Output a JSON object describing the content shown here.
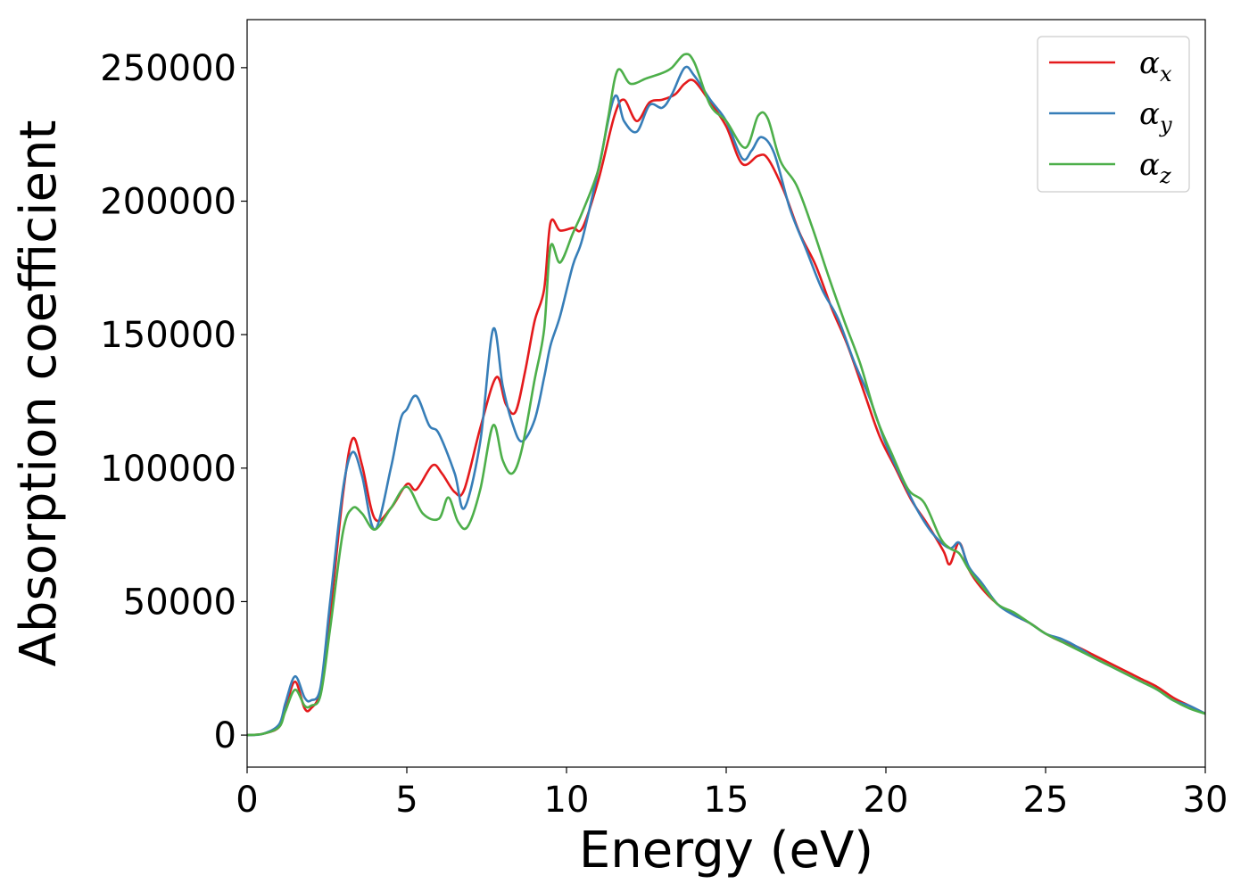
{
  "chart_data": {
    "type": "line",
    "title": "",
    "xlabel": "Energy (eV)",
    "ylabel": "Absorption coefficient",
    "xlim": [
      0,
      30
    ],
    "ylim": [
      -12000,
      268000
    ],
    "xticks": [
      0,
      5,
      10,
      15,
      20,
      25,
      30
    ],
    "yticks": [
      0,
      50000,
      100000,
      150000,
      200000,
      250000
    ],
    "grid": false,
    "legend_position": "top-right",
    "series": [
      {
        "name": "α",
        "subscript": "x",
        "color": "#e41a1c",
        "x": [
          0,
          0.5,
          1.0,
          1.2,
          1.5,
          1.8,
          2.0,
          2.3,
          2.6,
          3.0,
          3.3,
          3.6,
          4.0,
          4.5,
          5.0,
          5.3,
          5.8,
          6.1,
          6.5,
          6.8,
          7.3,
          7.8,
          8.1,
          8.4,
          8.7,
          9.0,
          9.3,
          9.5,
          9.8,
          10.2,
          10.5,
          11.0,
          11.5,
          11.8,
          12.2,
          12.6,
          13.0,
          13.4,
          13.7,
          14.0,
          14.5,
          15.0,
          15.5,
          16.0,
          16.3,
          16.8,
          17.3,
          17.8,
          18.3,
          18.8,
          19.3,
          19.8,
          20.3,
          20.8,
          21.3,
          21.8,
          22.0,
          22.3,
          22.6,
          23.0,
          23.5,
          24.0,
          24.5,
          25.0,
          25.5,
          26.0,
          26.5,
          27.0,
          27.5,
          28.0,
          28.5,
          29.0,
          29.5,
          30.0
        ],
        "y": [
          0,
          500,
          3000,
          10000,
          20000,
          10000,
          10000,
          17000,
          45000,
          90000,
          111000,
          101000,
          81000,
          85000,
          94000,
          92000,
          101000,
          98000,
          91000,
          92000,
          115000,
          134000,
          124000,
          121000,
          136000,
          155000,
          167000,
          192000,
          189000,
          190000,
          190000,
          208000,
          232000,
          238000,
          230000,
          237000,
          238000,
          240000,
          244000,
          245000,
          237000,
          228000,
          214000,
          217000,
          216000,
          204000,
          188000,
          176000,
          160000,
          146000,
          129000,
          112000,
          100000,
          88000,
          79000,
          69000,
          64000,
          72000,
          62000,
          55000,
          49000,
          45000,
          42000,
          38000,
          35000,
          33000,
          30000,
          27000,
          24000,
          21000,
          18000,
          14000,
          11000,
          8000
        ]
      },
      {
        "name": "α",
        "subscript": "y",
        "color": "#377eb8",
        "x": [
          0,
          0.5,
          1.0,
          1.2,
          1.5,
          1.8,
          2.0,
          2.3,
          2.6,
          3.0,
          3.3,
          3.6,
          4.0,
          4.5,
          4.8,
          5.0,
          5.3,
          5.7,
          6.0,
          6.5,
          6.8,
          7.3,
          7.7,
          8.0,
          8.3,
          8.6,
          9.0,
          9.3,
          9.5,
          9.8,
          10.2,
          10.5,
          11.0,
          11.5,
          11.8,
          12.2,
          12.6,
          13.0,
          13.3,
          13.7,
          14.0,
          14.5,
          15.0,
          15.5,
          15.8,
          16.1,
          16.5,
          17.0,
          17.5,
          18.0,
          18.5,
          19.0,
          19.5,
          20.0,
          20.5,
          21.0,
          21.5,
          22.0,
          22.3,
          22.6,
          23.0,
          23.5,
          24.0,
          24.5,
          25.0,
          25.5,
          26.0,
          26.5,
          27.0,
          27.5,
          28.0,
          28.5,
          29.0,
          29.5,
          30.0
        ],
        "y": [
          0,
          500,
          4000,
          12000,
          22000,
          14000,
          13000,
          18000,
          50000,
          92000,
          106000,
          97000,
          77000,
          100000,
          118000,
          122000,
          127000,
          116000,
          113000,
          98000,
          85000,
          110000,
          152000,
          131000,
          117000,
          110000,
          118000,
          134000,
          146000,
          157000,
          176000,
          186000,
          212000,
          239000,
          230000,
          226000,
          236000,
          235000,
          240000,
          250000,
          247000,
          238000,
          230000,
          216000,
          219000,
          224000,
          218000,
          197000,
          182000,
          167000,
          156000,
          140000,
          126000,
          109000,
          96000,
          84000,
          75000,
          70000,
          72000,
          63000,
          57000,
          49000,
          45000,
          42000,
          38000,
          36000,
          33000,
          29000,
          26000,
          23000,
          20000,
          17000,
          13000,
          11000,
          8000
        ]
      },
      {
        "name": "α",
        "subscript": "z",
        "color": "#4daf4a",
        "x": [
          0,
          0.5,
          1.0,
          1.2,
          1.5,
          1.8,
          2.0,
          2.3,
          2.6,
          3.0,
          3.3,
          3.6,
          4.0,
          4.5,
          5.0,
          5.5,
          6.0,
          6.3,
          6.6,
          6.9,
          7.3,
          7.7,
          8.0,
          8.3,
          8.6,
          9.0,
          9.3,
          9.5,
          9.8,
          10.2,
          10.5,
          11.0,
          11.3,
          11.6,
          12.0,
          12.5,
          13.0,
          13.3,
          13.7,
          14.0,
          14.5,
          15.0,
          15.6,
          16.0,
          16.3,
          16.7,
          17.2,
          17.7,
          18.2,
          18.7,
          19.2,
          19.7,
          20.2,
          20.7,
          21.2,
          21.7,
          22.0,
          22.3,
          22.6,
          23.0,
          23.5,
          24.0,
          24.5,
          25.0,
          25.5,
          26.0,
          26.5,
          27.0,
          27.5,
          28.0,
          28.5,
          29.0,
          29.5,
          30.0
        ],
        "y": [
          0,
          500,
          3000,
          9000,
          17000,
          11000,
          11000,
          15000,
          40000,
          76000,
          85000,
          83000,
          77000,
          85000,
          93000,
          83000,
          81000,
          89000,
          80000,
          78000,
          92000,
          116000,
          103000,
          98000,
          107000,
          133000,
          152000,
          183000,
          177000,
          188000,
          196000,
          212000,
          231000,
          249000,
          244000,
          246000,
          248000,
          250000,
          255000,
          252000,
          236000,
          230000,
          220000,
          232000,
          231000,
          215000,
          206000,
          190000,
          172000,
          155000,
          139000,
          119000,
          105000,
          92000,
          87000,
          74000,
          70000,
          68000,
          62000,
          56000,
          49000,
          46000,
          42000,
          38000,
          35000,
          32000,
          29000,
          26000,
          23000,
          20000,
          17000,
          13000,
          10000,
          8000
        ]
      }
    ]
  }
}
